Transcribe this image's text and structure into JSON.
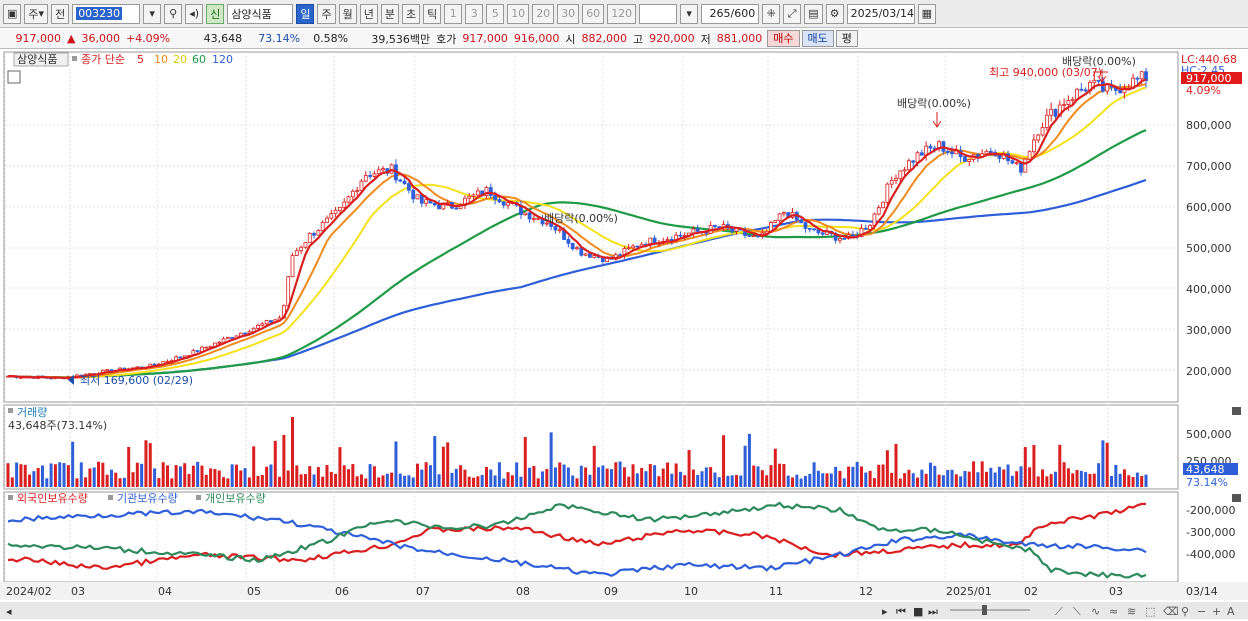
{
  "toolbar": {
    "tab_main": "주",
    "tab_all": "전",
    "stock_code": "003230",
    "credit_badge": "신",
    "stock_name": "삼양식품",
    "periods": [
      "일",
      "주",
      "월",
      "년",
      "분",
      "초",
      "틱"
    ],
    "active_period": "일",
    "minute_steps": [
      "1",
      "3",
      "5",
      "10",
      "20",
      "30",
      "60",
      "120"
    ],
    "count_value": "265",
    "count_total": "/600",
    "date_value": "2025/03/14"
  },
  "quote": {
    "price": "917,000",
    "arrow": "▲",
    "change": "36,000",
    "change_pct": "+4.09%",
    "volume": "43,648",
    "volume_ratio": "73.14%",
    "turnover": "0.58%",
    "amount": "39,536백만",
    "ask_label": "호가",
    "ask": "917,000",
    "bid": "916,000",
    "open_label": "시",
    "open": "882,000",
    "high_label": "고",
    "high": "920,000",
    "low_label": "저",
    "low": "881,000",
    "buy_label": "매수",
    "sell_label": "매도",
    "avg_label": "평"
  },
  "price_panel": {
    "name_tag": "삼양식품",
    "series_label": "종가 단순",
    "ma_labels": [
      "5",
      "10",
      "20",
      "60",
      "120"
    ],
    "ma_colors": [
      "#d91f1f",
      "#f08a1c",
      "#f4e11a",
      "#1f9a45",
      "#2f5fd8"
    ],
    "lc_label": "LC:440.68",
    "hc_label": "HC:2.45",
    "price_badge": "917,000",
    "pct_badge": "4.09%",
    "y_ticks": [
      "800,000",
      "700,000",
      "600,000",
      "500,000",
      "400,000",
      "300,000",
      "200,000"
    ],
    "annotation_high": "최고 940,000 (03/07)",
    "annotation_low": "최저 169,600 (02/29)",
    "dividend_notes": [
      "배당락(0.00%)",
      "배당락(0.00%)",
      "배당락(0.00%)"
    ]
  },
  "volume_panel": {
    "title": "거래량",
    "value_label": "43,648주(73.14%)",
    "y_ticks": [
      "500,000",
      "250,000"
    ],
    "badge_value": "43,648",
    "badge_pct": "73.14%"
  },
  "holding_panel": {
    "legend": [
      "외국인보유수량",
      "기관보유수량",
      "개인보유수량"
    ],
    "legend_colors": [
      "#d91f1f",
      "#2f5fd8",
      "#2d8a5b"
    ],
    "y_ticks": [
      "-200,000",
      "-300,000",
      "-400,000"
    ]
  },
  "x_axis": {
    "labels": [
      "2024/02",
      "03",
      "04",
      "05",
      "06",
      "07",
      "08",
      "09",
      "10",
      "11",
      "12",
      "2025/01",
      "02",
      "03",
      "03/14"
    ]
  }
}
